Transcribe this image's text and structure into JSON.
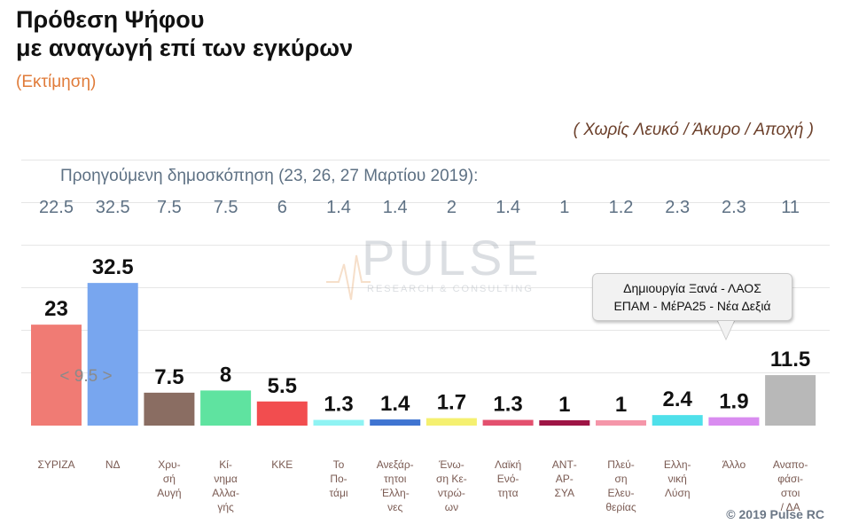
{
  "title_line1": "Πρόθεση Ψήφου",
  "title_line2": "με αναγωγή επί των εγκύρων",
  "subtitle": "(Εκτίμηση)",
  "note": "( Χωρίς Λευκό / Άκυρο / Αποχή )",
  "previous_label": "Προηγούμενη δημοσκόπηση (23, 26, 27 Μαρτίου 2019):",
  "watermark": {
    "brand": "PULSE",
    "tagline": "RESEARCH & CONSULTING"
  },
  "callout": {
    "line1": "Δημιουργία Ξανά - ΛΑΟΣ",
    "line2": "ΕΠΑΜ - ΜέΡΑ25 - Νέα Δεξιά"
  },
  "gap_label": "< 9.5 >",
  "copyright": "© 2019 Pulse RC",
  "chart_data": {
    "type": "bar",
    "title": "Πρόθεση Ψήφου με αναγωγή επί των εγκύρων",
    "categories": [
      "ΣΥΡΙΖΑ",
      "ΝΔ",
      "Χρυσή Αυγή",
      "Κίνημα Αλλαγής",
      "ΚΚΕ",
      "Το Ποτάμι",
      "Ανεξάρτητοι Έλληνες",
      "Ένωση Κεντρώων",
      "Λαϊκή Ενότητα",
      "ΑΝΤΑΡΣΥΑ",
      "Πλεύση Ελευθερίας",
      "Ελληνική Λύση",
      "Άλλο",
      "Αναποφάσιστοι / ΔΑ"
    ],
    "category_label_lines": [
      [
        "ΣΥΡΙΖΑ"
      ],
      [
        "ΝΔ"
      ],
      [
        "Χρυ-",
        "σή",
        "Αυγή"
      ],
      [
        "Κί-",
        "νημα",
        "Αλλα-",
        "γής"
      ],
      [
        "ΚΚΕ"
      ],
      [
        "Το",
        "Πο-",
        "τάμι"
      ],
      [
        "Ανεξάρ-",
        "τητοι",
        "Έλλη-",
        "νες"
      ],
      [
        "Ένω-",
        "ση Κε-",
        "ντρώ-",
        "ων"
      ],
      [
        "Λαϊκή",
        "Ενό-",
        "τητα"
      ],
      [
        "ΑΝΤ-",
        "ΑΡ-",
        "ΣΥΑ"
      ],
      [
        "Πλεύ-",
        "ση",
        "Ελευ-",
        "θερίας"
      ],
      [
        "Ελλη-",
        "νική",
        "Λύση"
      ],
      [
        "Άλλο"
      ],
      [
        "Αναπο-",
        "φάσι-",
        "στοι",
        "/ ΔΑ"
      ]
    ],
    "series": [
      {
        "values": [
          23,
          32.5,
          7.5,
          8,
          5.5,
          1.3,
          1.4,
          1.7,
          1.3,
          1,
          1,
          2.4,
          1.9,
          11.5
        ]
      }
    ],
    "value_labels": [
      "23",
      "32.5",
      "7.5",
      "8",
      "5.5",
      "1.3",
      "1.4",
      "1.7",
      "1.3",
      "1",
      "1",
      "2.4",
      "1.9",
      "11.5"
    ],
    "previous_poll": [
      "22.5",
      "32.5",
      "7.5",
      "7.5",
      "6",
      "1.4",
      "1.4",
      "2",
      "1.4",
      "1",
      "1.2",
      "2.3",
      "2.3",
      "11"
    ],
    "colors": [
      "#f07b74",
      "#78a6ef",
      "#8a6d62",
      "#5fe3a0",
      "#f24d4f",
      "#8ff3f3",
      "#3f74d1",
      "#f5f070",
      "#e3506e",
      "#9e1545",
      "#f596a9",
      "#4fe0ea",
      "#d98cf0",
      "#b8b8b8"
    ],
    "ylim": [
      0,
      35
    ],
    "grid": true
  }
}
